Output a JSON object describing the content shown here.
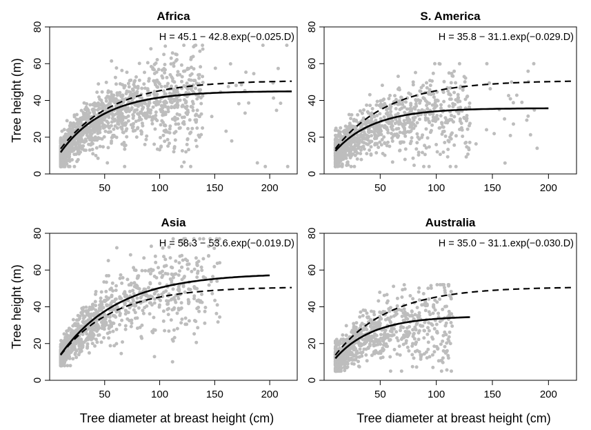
{
  "chart_data": [
    {
      "type": "scatter",
      "title": "Africa",
      "xlabel": "",
      "ylabel": "Tree height (m)",
      "equation": "H = 45.1 − 42.8.exp(−0.025.D)",
      "xlim": [
        0,
        225
      ],
      "ylim": [
        0,
        80
      ],
      "xticks": [
        "50",
        "100",
        "150",
        "200"
      ],
      "yticks": [
        "0",
        "20",
        "40",
        "60",
        "80"
      ],
      "fit": {
        "a": 45.1,
        "b": 42.8,
        "c": 0.025,
        "x_range": [
          10,
          220
        ]
      },
      "pantropical_fit": {
        "a": 50.9,
        "b": 45.9,
        "c": 0.021,
        "x_range": [
          10,
          220
        ]
      },
      "cloud": {
        "x_range": [
          10,
          140
        ],
        "max_x": 220,
        "y_low": 4,
        "y_high": 70,
        "n_points": 1500
      },
      "point_color": "#bdbdbd"
    },
    {
      "type": "scatter",
      "title": "S. America",
      "xlabel": "",
      "ylabel": "",
      "equation": "H = 35.8 − 31.1.exp(−0.029.D)",
      "xlim": [
        0,
        225
      ],
      "ylim": [
        0,
        80
      ],
      "xticks": [
        "50",
        "100",
        "150",
        "200"
      ],
      "yticks": [
        "0",
        "20",
        "40",
        "60",
        "80"
      ],
      "fit": {
        "a": 35.8,
        "b": 31.1,
        "c": 0.029,
        "x_range": [
          10,
          200
        ]
      },
      "pantropical_fit": {
        "a": 50.9,
        "b": 45.9,
        "c": 0.021,
        "x_range": [
          10,
          220
        ]
      },
      "cloud": {
        "x_range": [
          10,
          130
        ],
        "max_x": 190,
        "y_low": 4,
        "y_high": 60,
        "n_points": 1000
      },
      "point_color": "#bdbdbd"
    },
    {
      "type": "scatter",
      "title": "Asia",
      "xlabel": "Tree diameter at breast height (cm)",
      "ylabel": "Tree height (m)",
      "equation": "H = 58.3 − 53.6.exp(−0.019.D)",
      "xlim": [
        0,
        225
      ],
      "ylim": [
        0,
        80
      ],
      "xticks": [
        "50",
        "100",
        "150",
        "200"
      ],
      "yticks": [
        "0",
        "20",
        "40",
        "60",
        "80"
      ],
      "fit": {
        "a": 58.3,
        "b": 53.6,
        "c": 0.019,
        "x_range": [
          10,
          200
        ]
      },
      "pantropical_fit": {
        "a": 50.9,
        "b": 45.9,
        "c": 0.021,
        "x_range": [
          10,
          220
        ]
      },
      "cloud": {
        "x_range": [
          10,
          140
        ],
        "max_x": 155,
        "y_low": 8,
        "y_high": 77,
        "n_points": 1000
      },
      "point_color": "#bdbdbd"
    },
    {
      "type": "scatter",
      "title": "Australia",
      "xlabel": "Tree diameter at breast height (cm)",
      "ylabel": "",
      "equation": "H = 35.0 − 31.1.exp(−0.030.D)",
      "xlim": [
        0,
        225
      ],
      "ylim": [
        0,
        80
      ],
      "xticks": [
        "50",
        "100",
        "150",
        "200"
      ],
      "yticks": [
        "0",
        "20",
        "40",
        "60",
        "80"
      ],
      "fit": {
        "a": 35.0,
        "b": 31.1,
        "c": 0.03,
        "x_range": [
          10,
          130
        ]
      },
      "pantropical_fit": {
        "a": 50.9,
        "b": 45.9,
        "c": 0.021,
        "x_range": [
          10,
          220
        ]
      },
      "cloud": {
        "x_range": [
          10,
          110
        ],
        "max_x": 115,
        "y_low": 5,
        "y_high": 52,
        "n_points": 800
      },
      "point_color": "#bdbdbd"
    }
  ]
}
